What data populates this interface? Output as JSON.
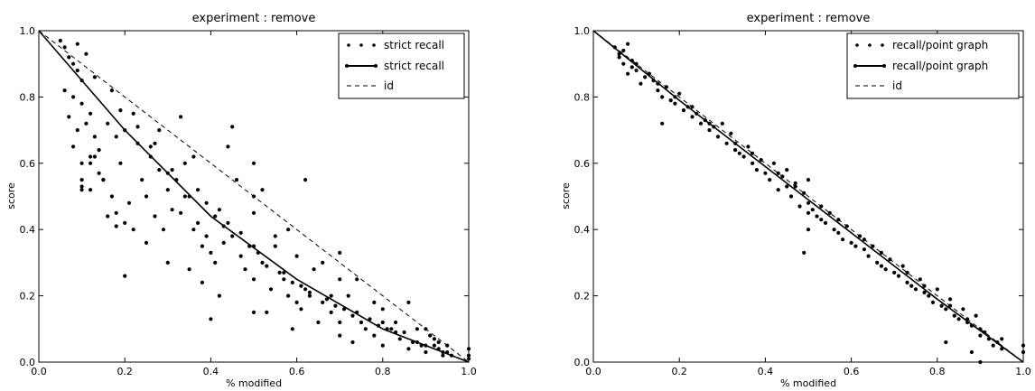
{
  "figure": {
    "background": "#ffffff"
  },
  "chart_data": [
    {
      "type": "scatter",
      "title": "experiment : remove",
      "xlabel": "% modified",
      "ylabel": "score",
      "xlim": [
        0.0,
        1.0
      ],
      "ylim": [
        0.0,
        1.0
      ],
      "xticks": [
        "0.0",
        "0.2",
        "0.4",
        "0.6",
        "0.8",
        "1.0"
      ],
      "yticks": [
        "0.0",
        "0.2",
        "0.4",
        "0.6",
        "0.8",
        "1.0"
      ],
      "grid": false,
      "legend_position": "top-right",
      "legend": [
        "strict recall",
        "strict recall",
        "id"
      ],
      "series": [
        {
          "name": "strict recall",
          "kind": "points",
          "color": "#000000",
          "x": [
            0.05,
            0.06,
            0.07,
            0.08,
            0.09,
            0.1,
            0.06,
            0.08,
            0.1,
            0.12,
            0.07,
            0.09,
            0.11,
            0.13,
            0.08,
            0.1,
            0.12,
            0.14,
            0.15,
            0.1,
            0.12,
            0.16,
            0.18,
            0.13,
            0.15,
            0.17,
            0.19,
            0.2,
            0.22,
            0.18,
            0.2,
            0.24,
            0.26,
            0.21,
            0.23,
            0.25,
            0.27,
            0.28,
            0.3,
            0.25,
            0.29,
            0.31,
            0.32,
            0.34,
            0.3,
            0.33,
            0.35,
            0.36,
            0.38,
            0.35,
            0.37,
            0.39,
            0.4,
            0.42,
            0.38,
            0.41,
            0.43,
            0.44,
            0.45,
            0.42,
            0.47,
            0.48,
            0.5,
            0.5,
            0.5,
            0.5,
            0.5,
            0.52,
            0.54,
            0.55,
            0.56,
            0.58,
            0.53,
            0.57,
            0.6,
            0.6,
            0.62,
            0.64,
            0.59,
            0.61,
            0.63,
            0.65,
            0.66,
            0.68,
            0.7,
            0.7,
            0.7,
            0.72,
            0.74,
            0.76,
            0.73,
            0.75,
            0.78,
            0.8,
            0.8,
            0.82,
            0.84,
            0.86,
            0.83,
            0.85,
            0.88,
            0.9,
            0.9,
            0.9,
            0.92,
            0.93,
            0.94,
            0.95,
            0.95,
            0.91,
            0.93,
            0.2,
            0.16,
            0.18,
            0.22,
            0.1,
            0.1,
            0.4,
            0.45,
            0.5,
            0.55,
            0.62,
            0.7,
            0.12,
            0.14,
            0.27,
            0.33,
            0.3,
            0.36,
            0.44,
            0.46,
            0.52,
            0.58,
            0.66,
            0.68,
            0.74,
            0.78,
            0.8,
            0.86,
            0.88,
            0.92,
            0.94,
            0.96,
            1.0,
            1.0,
            1.0,
            0.09,
            0.11,
            0.13,
            0.17,
            0.19,
            0.23,
            0.26,
            0.28,
            0.31,
            0.34,
            0.37,
            0.39,
            0.41,
            0.43,
            0.47,
            0.49,
            0.51,
            0.53,
            0.57,
            0.59,
            0.61,
            0.63,
            0.67,
            0.69,
            0.71,
            0.73,
            0.77,
            0.79,
            0.81,
            0.83,
            0.87,
            0.89
          ],
          "y": [
            0.97,
            0.95,
            0.92,
            0.9,
            0.88,
            0.85,
            0.82,
            0.8,
            0.78,
            0.75,
            0.74,
            0.7,
            0.72,
            0.68,
            0.65,
            0.6,
            0.62,
            0.57,
            0.55,
            0.53,
            0.52,
            0.72,
            0.68,
            0.62,
            0.55,
            0.5,
            0.6,
            0.7,
            0.75,
            0.45,
            0.42,
            0.55,
            0.62,
            0.48,
            0.66,
            0.5,
            0.44,
            0.58,
            0.52,
            0.36,
            0.4,
            0.46,
            0.55,
            0.6,
            0.3,
            0.45,
            0.5,
            0.4,
            0.35,
            0.28,
            0.42,
            0.38,
            0.33,
            0.46,
            0.24,
            0.3,
            0.36,
            0.42,
            0.38,
            0.2,
            0.32,
            0.28,
            0.45,
            0.35,
            0.25,
            0.15,
            0.6,
            0.3,
            0.22,
            0.35,
            0.27,
            0.2,
            0.15,
            0.25,
            0.32,
            0.18,
            0.22,
            0.28,
            0.1,
            0.16,
            0.2,
            0.12,
            0.18,
            0.15,
            0.25,
            0.12,
            0.08,
            0.2,
            0.15,
            0.1,
            0.06,
            0.12,
            0.08,
            0.16,
            0.05,
            0.1,
            0.07,
            0.04,
            0.12,
            0.09,
            0.06,
            0.1,
            0.05,
            0.03,
            0.07,
            0.04,
            0.02,
            0.05,
            0.03,
            0.08,
            0.06,
            0.26,
            0.44,
            0.41,
            0.4,
            0.52,
            0.55,
            0.13,
            0.71,
            0.5,
            0.38,
            0.55,
            0.33,
            0.6,
            0.64,
            0.66,
            0.74,
            0.57,
            0.62,
            0.65,
            0.55,
            0.52,
            0.4,
            0.3,
            0.2,
            0.25,
            0.18,
            0.12,
            0.18,
            0.1,
            0.05,
            0.03,
            0.02,
            0.04,
            0.02,
            0.01,
            0.96,
            0.93,
            0.86,
            0.82,
            0.76,
            0.71,
            0.65,
            0.7,
            0.58,
            0.5,
            0.52,
            0.48,
            0.44,
            0.41,
            0.39,
            0.35,
            0.33,
            0.29,
            0.27,
            0.24,
            0.23,
            0.21,
            0.19,
            0.17,
            0.16,
            0.14,
            0.13,
            0.11,
            0.1,
            0.09,
            0.06,
            0.05
          ]
        },
        {
          "name": "strict recall",
          "kind": "line",
          "color": "#000000",
          "x": [
            0.0,
            0.2,
            0.4,
            0.6,
            0.8,
            1.0
          ],
          "y": [
            1.0,
            0.7,
            0.44,
            0.25,
            0.1,
            0.0
          ]
        },
        {
          "name": "id",
          "kind": "dashed",
          "color": "#000000",
          "x": [
            0.0,
            1.0
          ],
          "y": [
            1.0,
            0.0
          ]
        }
      ]
    },
    {
      "type": "scatter",
      "title": "experiment : remove",
      "xlabel": "% modified",
      "ylabel": "score",
      "xlim": [
        0.0,
        1.0
      ],
      "ylim": [
        0.0,
        1.0
      ],
      "xticks": [
        "0.0",
        "0.2",
        "0.4",
        "0.6",
        "0.8",
        "1.0"
      ],
      "yticks": [
        "0.0",
        "0.2",
        "0.4",
        "0.6",
        "0.8",
        "1.0"
      ],
      "grid": false,
      "legend_position": "top-right",
      "legend": [
        "recall/point graph",
        "recall/point graph",
        "id"
      ],
      "series": [
        {
          "name": "recall/point graph",
          "kind": "points",
          "color": "#000000",
          "x": [
            0.05,
            0.06,
            0.07,
            0.08,
            0.09,
            0.1,
            0.06,
            0.08,
            0.1,
            0.12,
            0.11,
            0.13,
            0.14,
            0.15,
            0.16,
            0.17,
            0.18,
            0.19,
            0.2,
            0.21,
            0.22,
            0.23,
            0.24,
            0.25,
            0.26,
            0.27,
            0.28,
            0.29,
            0.3,
            0.31,
            0.32,
            0.33,
            0.34,
            0.35,
            0.36,
            0.37,
            0.38,
            0.39,
            0.4,
            0.41,
            0.42,
            0.43,
            0.44,
            0.45,
            0.46,
            0.47,
            0.48,
            0.49,
            0.5,
            0.5,
            0.5,
            0.5,
            0.51,
            0.52,
            0.53,
            0.54,
            0.55,
            0.56,
            0.57,
            0.58,
            0.59,
            0.6,
            0.61,
            0.62,
            0.63,
            0.64,
            0.65,
            0.66,
            0.67,
            0.68,
            0.69,
            0.7,
            0.71,
            0.72,
            0.73,
            0.74,
            0.75,
            0.76,
            0.77,
            0.78,
            0.79,
            0.8,
            0.81,
            0.82,
            0.83,
            0.84,
            0.85,
            0.86,
            0.87,
            0.88,
            0.89,
            0.9,
            0.9,
            0.91,
            0.92,
            0.93,
            0.94,
            0.95,
            0.95,
            0.82,
            0.88,
            0.9,
            0.16,
            0.45,
            0.49,
            1.0,
            1.0,
            0.07,
            0.09,
            0.13,
            0.15,
            0.19,
            0.23,
            0.27,
            0.33,
            0.37,
            0.43,
            0.47,
            0.53,
            0.57,
            0.63,
            0.67,
            0.73,
            0.77,
            0.83,
            0.87,
            0.91
          ],
          "y": [
            0.95,
            0.93,
            0.9,
            0.96,
            0.91,
            0.88,
            0.92,
            0.87,
            0.9,
            0.86,
            0.84,
            0.87,
            0.85,
            0.82,
            0.8,
            0.83,
            0.79,
            0.78,
            0.81,
            0.76,
            0.77,
            0.74,
            0.75,
            0.72,
            0.73,
            0.7,
            0.71,
            0.68,
            0.72,
            0.66,
            0.69,
            0.64,
            0.63,
            0.62,
            0.65,
            0.6,
            0.58,
            0.61,
            0.57,
            0.55,
            0.6,
            0.52,
            0.56,
            0.53,
            0.5,
            0.54,
            0.47,
            0.51,
            0.45,
            0.55,
            0.4,
            0.48,
            0.46,
            0.44,
            0.43,
            0.42,
            0.45,
            0.4,
            0.39,
            0.37,
            0.41,
            0.36,
            0.35,
            0.38,
            0.34,
            0.32,
            0.35,
            0.3,
            0.29,
            0.28,
            0.31,
            0.27,
            0.26,
            0.29,
            0.24,
            0.23,
            0.22,
            0.25,
            0.21,
            0.2,
            0.18,
            0.22,
            0.17,
            0.16,
            0.19,
            0.14,
            0.13,
            0.16,
            0.12,
            0.11,
            0.14,
            0.1,
            0.08,
            0.09,
            0.07,
            0.05,
            0.06,
            0.04,
            0.07,
            0.06,
            0.03,
            0.0,
            0.72,
            0.58,
            0.33,
            0.05,
            0.03,
            0.94,
            0.89,
            0.87,
            0.84,
            0.8,
            0.77,
            0.72,
            0.66,
            0.63,
            0.57,
            0.53,
            0.47,
            0.43,
            0.37,
            0.33,
            0.27,
            0.23,
            0.17,
            0.13,
            0.09
          ]
        },
        {
          "name": "recall/point graph",
          "kind": "line",
          "color": "#000000",
          "x": [
            0.0,
            0.2,
            0.4,
            0.6,
            0.8,
            1.0
          ],
          "y": [
            1.0,
            0.79,
            0.59,
            0.39,
            0.19,
            0.0
          ]
        },
        {
          "name": "id",
          "kind": "dashed",
          "color": "#000000",
          "x": [
            0.0,
            1.0
          ],
          "y": [
            1.0,
            0.0
          ]
        }
      ]
    }
  ]
}
